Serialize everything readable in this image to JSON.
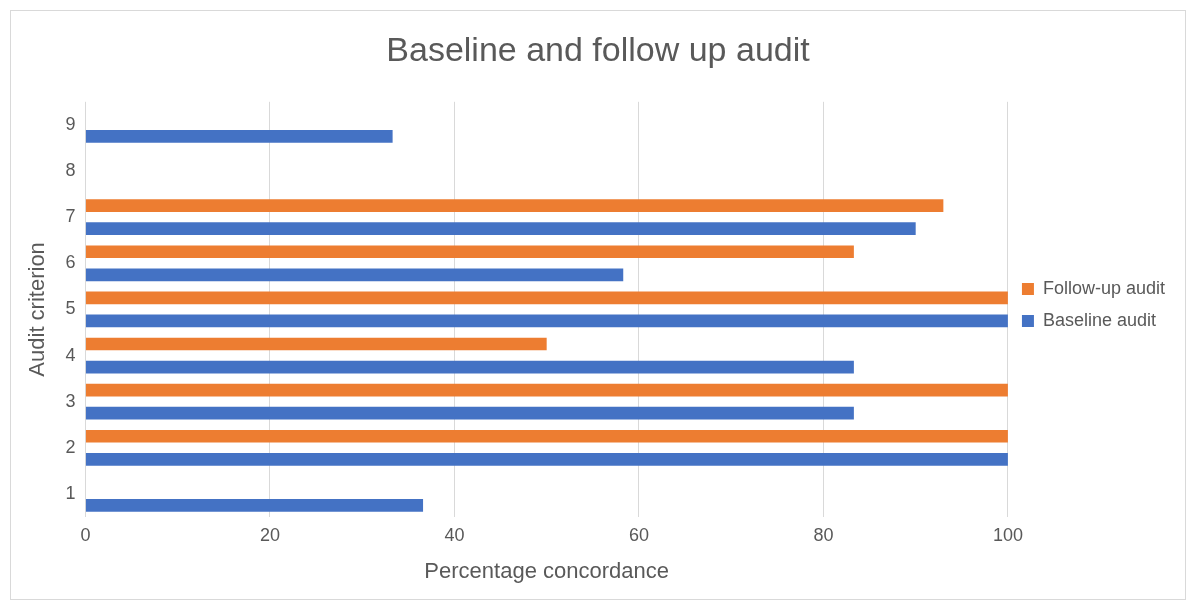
{
  "chart_data": {
    "type": "bar",
    "orientation": "horizontal",
    "title": "Baseline and follow up audit",
    "xlabel": "Percentage concordance",
    "ylabel": "Audit criterion",
    "categories": [
      "9",
      "8",
      "7",
      "6",
      "5",
      "4",
      "3",
      "2",
      "1"
    ],
    "series": [
      {
        "name": "Follow-up audit",
        "color": "#ed7d31",
        "values": [
          null,
          null,
          93,
          83.3,
          100,
          50,
          100,
          100,
          null
        ]
      },
      {
        "name": "Baseline audit",
        "color": "#4472c4",
        "values": [
          33.3,
          null,
          90,
          58.3,
          100,
          83.3,
          83.3,
          100,
          36.6
        ]
      }
    ],
    "xlim": [
      0,
      100
    ],
    "xticks": [
      0,
      20,
      40,
      60,
      80,
      100
    ],
    "grid": "x",
    "legend": "right"
  }
}
